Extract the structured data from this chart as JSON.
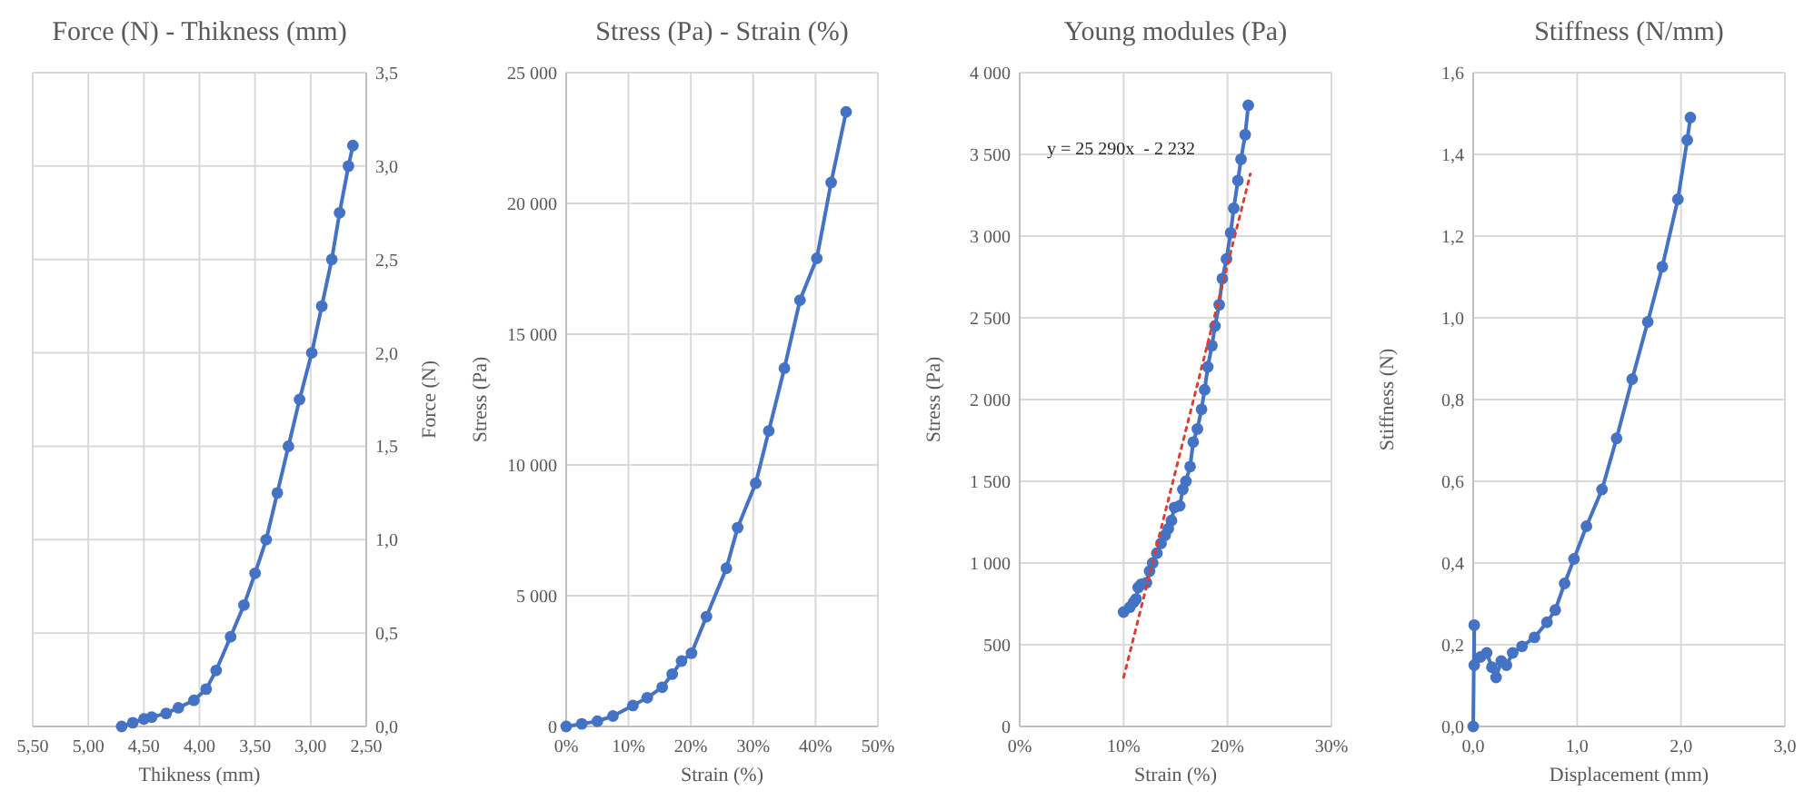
{
  "chart_data": [
    {
      "type": "line",
      "title": "Force (N) - Thikness (mm)",
      "xlabel": "Thikness (mm)",
      "y2label": "Force (N)",
      "xlim": [
        5.5,
        2.5
      ],
      "xticks": [
        {
          "value": 5.5,
          "label": "5,50"
        },
        {
          "value": 5,
          "label": "5,00"
        },
        {
          "value": 4.5,
          "label": "4,50"
        },
        {
          "value": 4,
          "label": "4,00"
        },
        {
          "value": 3.5,
          "label": "3,50"
        },
        {
          "value": 3,
          "label": "3,00"
        },
        {
          "value": 2.5,
          "label": "2,50"
        }
      ],
      "y2lim": [
        0,
        3.5
      ],
      "y2ticks": [
        {
          "value": 0,
          "label": "0,0"
        },
        {
          "value": 0.5,
          "label": "0,5"
        },
        {
          "value": 1,
          "label": "1,0"
        },
        {
          "value": 1.5,
          "label": "1,5"
        },
        {
          "value": 2,
          "label": "2,0"
        },
        {
          "value": 2.5,
          "label": "2,5"
        },
        {
          "value": 3,
          "label": "3,0"
        },
        {
          "value": 3.5,
          "label": "3,5"
        }
      ],
      "grid": true,
      "marker": "circle",
      "line_style": "solid",
      "series": [
        {
          "color": "#4472c4",
          "axis": "y2",
          "x": [
            4.7,
            4.6,
            4.5,
            4.43,
            4.3,
            4.19,
            4.05,
            3.94,
            3.85,
            3.72,
            3.6,
            3.5,
            3.4,
            3.3,
            3.2,
            3.1,
            2.99,
            2.9,
            2.81,
            2.74,
            2.66,
            2.62
          ],
          "values": [
            0,
            0.02,
            0.04,
            0.05,
            0.07,
            0.1,
            0.14,
            0.2,
            0.3,
            0.48,
            0.65,
            0.82,
            1.0,
            1.25,
            1.5,
            1.75,
            2.0,
            2.25,
            2.5,
            2.75,
            3.0,
            3.11
          ]
        }
      ]
    },
    {
      "type": "line",
      "title": "Stress (Pa) - Strain (%)",
      "xlabel": "Strain (%)",
      "ylabel": "Stress (Pa)",
      "xlim": [
        0,
        50
      ],
      "xticks": [
        {
          "value": 0,
          "label": "0%"
        },
        {
          "value": 10,
          "label": "10%"
        },
        {
          "value": 20,
          "label": "20%"
        },
        {
          "value": 30,
          "label": "30%"
        },
        {
          "value": 40,
          "label": "40%"
        },
        {
          "value": 50,
          "label": "50%"
        }
      ],
      "ylim": [
        0,
        25000
      ],
      "yticks": [
        {
          "value": 0,
          "label": "0"
        },
        {
          "value": 5000,
          "label": "5 000"
        },
        {
          "value": 10000,
          "label": "10 000"
        },
        {
          "value": 15000,
          "label": "15 000"
        },
        {
          "value": 20000,
          "label": "20 000"
        },
        {
          "value": 25000,
          "label": "25 000"
        }
      ],
      "grid": true,
      "marker": "circle",
      "line_style": "solid",
      "series": [
        {
          "color": "#4472c4",
          "x": [
            0,
            2.5,
            5,
            7.5,
            10.7,
            13,
            15.4,
            17,
            18.5,
            20.1,
            22.5,
            25.7,
            27.5,
            30.4,
            32.5,
            35,
            37.5,
            40.2,
            42.5,
            44.9
          ],
          "values": [
            0,
            100,
            200,
            400,
            800,
            1100,
            1500,
            2000,
            2500,
            2800,
            4200,
            6050,
            7600,
            9300,
            11300,
            13700,
            16300,
            17900,
            20800,
            23500
          ]
        }
      ]
    },
    {
      "type": "line",
      "title": "Young modules (Pa)",
      "xlabel": "Strain (%)",
      "ylabel": "Stress (Pa)",
      "annotations": [
        "y = 25 290x  - 2 232"
      ],
      "xlim": [
        0,
        30
      ],
      "xticks": [
        {
          "value": 0,
          "label": "0%"
        },
        {
          "value": 10,
          "label": "10%"
        },
        {
          "value": 20,
          "label": "20%"
        },
        {
          "value": 30,
          "label": "30%"
        }
      ],
      "ylim": [
        0,
        4000
      ],
      "yticks": [
        {
          "value": 0,
          "label": "0"
        },
        {
          "value": 500,
          "label": "500"
        },
        {
          "value": 1000,
          "label": "1 000"
        },
        {
          "value": 1500,
          "label": "1 500"
        },
        {
          "value": 2000,
          "label": "2 000"
        },
        {
          "value": 2500,
          "label": "2 500"
        },
        {
          "value": 3000,
          "label": "3 000"
        },
        {
          "value": 3500,
          "label": "3 500"
        },
        {
          "value": 4000,
          "label": "4 000"
        }
      ],
      "grid": true,
      "marker": "circle",
      "line_style": "solid",
      "series": [
        {
          "color": "#4472c4",
          "x": [
            10.0,
            10.6,
            10.96,
            11.2,
            11.4,
            11.7,
            12.2,
            12.5,
            12.8,
            13.2,
            13.6,
            14.0,
            14.3,
            14.6,
            14.9,
            15.4,
            15.7,
            16.0,
            16.4,
            16.7,
            17.1,
            17.5,
            17.8,
            18.1,
            18.5,
            18.8,
            19.2,
            19.5,
            19.9,
            20.3,
            20.6,
            21.0,
            21.3,
            21.7,
            22.0
          ],
          "values": [
            700,
            730,
            760,
            780,
            850,
            870,
            880,
            950,
            1000,
            1060,
            1120,
            1170,
            1210,
            1260,
            1340,
            1350,
            1450,
            1500,
            1590,
            1740,
            1820,
            1940,
            2060,
            2200,
            2330,
            2450,
            2580,
            2740,
            2860,
            3020,
            3170,
            3340,
            3470,
            3620,
            3800
          ]
        },
        {
          "type": "line",
          "color": "#e03c31",
          "marker": "none",
          "line_style": "dotted",
          "x": [
            10,
            22.2
          ],
          "values": [
            300,
            3380
          ]
        }
      ]
    },
    {
      "type": "line",
      "title": "Stiffness (N/mm)",
      "xlabel": "Displacement (mm)",
      "ylabel": "Stiffness (N)",
      "xlim": [
        0,
        3
      ],
      "xticks": [
        {
          "value": 0,
          "label": "0,0"
        },
        {
          "value": 1,
          "label": "1,0"
        },
        {
          "value": 2,
          "label": "2,0"
        },
        {
          "value": 3,
          "label": "3,0"
        }
      ],
      "ylim": [
        0,
        1.6
      ],
      "yticks": [
        {
          "value": 0,
          "label": "0,0"
        },
        {
          "value": 0.2,
          "label": "0,2"
        },
        {
          "value": 0.4,
          "label": "0,4"
        },
        {
          "value": 0.6,
          "label": "0,6"
        },
        {
          "value": 0.8,
          "label": "0,8"
        },
        {
          "value": 1,
          "label": "1,0"
        },
        {
          "value": 1.2,
          "label": "1,2"
        },
        {
          "value": 1.4,
          "label": "1,4"
        },
        {
          "value": 1.6,
          "label": "1,6"
        }
      ],
      "grid": true,
      "marker": "circle",
      "line_style": "solid",
      "series": [
        {
          "color": "#4472c4",
          "x": [
            0,
            0.01,
            0.01,
            0.07,
            0.13,
            0.18,
            0.22,
            0.27,
            0.32,
            0.38,
            0.47,
            0.59,
            0.71,
            0.79,
            0.88,
            0.97,
            1.09,
            1.24,
            1.38,
            1.53,
            1.68,
            1.82,
            1.97,
            2.06,
            2.09
          ],
          "values": [
            0,
            0.248,
            0.15,
            0.17,
            0.18,
            0.145,
            0.12,
            0.16,
            0.15,
            0.18,
            0.196,
            0.218,
            0.255,
            0.285,
            0.35,
            0.41,
            0.49,
            0.58,
            0.705,
            0.85,
            0.99,
            1.125,
            1.29,
            1.435,
            1.49
          ]
        }
      ]
    }
  ]
}
